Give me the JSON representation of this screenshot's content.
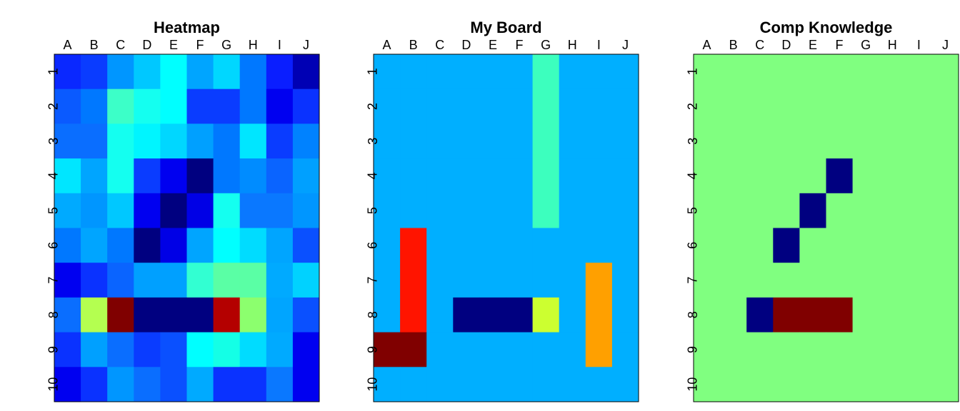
{
  "panels": [
    {
      "title": "Heatmap",
      "columns": [
        "A",
        "B",
        "C",
        "D",
        "E",
        "F",
        "G",
        "H",
        "I",
        "J"
      ],
      "rows": [
        "1",
        "2",
        "3",
        "4",
        "5",
        "6",
        "7",
        "8",
        "9",
        "10"
      ],
      "cells": [
        [
          "#0a28ff",
          "#0a3cff",
          "#0096ff",
          "#00c8ff",
          "#00ffff",
          "#00a5ff",
          "#00d7ff",
          "#0078ff",
          "#0a1eff",
          "#0000b4"
        ],
        [
          "#0a5aff",
          "#0078ff",
          "#3cffc8",
          "#14fff0",
          "#00ffff",
          "#0a3cff",
          "#0a3cff",
          "#0078ff",
          "#0000f0",
          "#0a32ff"
        ],
        [
          "#0a6eff",
          "#0a6eff",
          "#14fff0",
          "#00f5ff",
          "#00d7ff",
          "#00a0ff",
          "#0078ff",
          "#00e6ff",
          "#0a3cff",
          "#0082ff"
        ],
        [
          "#00e6ff",
          "#00a5ff",
          "#14fff0",
          "#0a3cff",
          "#0000f0",
          "#000080",
          "#0078ff",
          "#008cff",
          "#0a64ff",
          "#00a0ff"
        ],
        [
          "#00aaff",
          "#0096ff",
          "#00c8ff",
          "#0000f0",
          "#000080",
          "#0000e6",
          "#14fff0",
          "#0a78ff",
          "#0a78ff",
          "#0096ff"
        ],
        [
          "#0078ff",
          "#00a5ff",
          "#0078ff",
          "#000080",
          "#0000e6",
          "#00a5ff",
          "#00ffff",
          "#00dcff",
          "#00a5ff",
          "#0a50ff"
        ],
        [
          "#0000f0",
          "#0a32ff",
          "#0a64ff",
          "#00a0ff",
          "#00a0ff",
          "#32ffd2",
          "#5affa5",
          "#5affa5",
          "#00aaff",
          "#00d2ff"
        ],
        [
          "#0a6eff",
          "#b4ff50",
          "#800000",
          "#000080",
          "#000080",
          "#000080",
          "#b40000",
          "#8cff6e",
          "#00a5ff",
          "#0a50ff"
        ],
        [
          "#0a32ff",
          "#00a0ff",
          "#0a6eff",
          "#0a3cff",
          "#0a50ff",
          "#00ffff",
          "#14ffe6",
          "#00dcff",
          "#00aaff",
          "#0000f0"
        ],
        [
          "#0000f0",
          "#0a32ff",
          "#0096ff",
          "#0a6eff",
          "#0a50ff",
          "#00aaff",
          "#0a32ff",
          "#0a32ff",
          "#0a78ff",
          "#0000f0"
        ]
      ]
    },
    {
      "title": "My Board",
      "columns": [
        "A",
        "B",
        "C",
        "D",
        "E",
        "F",
        "G",
        "H",
        "I",
        "J"
      ],
      "rows": [
        "1",
        "2",
        "3",
        "4",
        "5",
        "6",
        "7",
        "8",
        "9",
        "10"
      ],
      "cells": [
        [
          "#00afff",
          "#00afff",
          "#00afff",
          "#00afff",
          "#00afff",
          "#00afff",
          "#3cffbe",
          "#00afff",
          "#00afff",
          "#00afff"
        ],
        [
          "#00afff",
          "#00afff",
          "#00afff",
          "#00afff",
          "#00afff",
          "#00afff",
          "#3cffbe",
          "#00afff",
          "#00afff",
          "#00afff"
        ],
        [
          "#00afff",
          "#00afff",
          "#00afff",
          "#00afff",
          "#00afff",
          "#00afff",
          "#3cffbe",
          "#00afff",
          "#00afff",
          "#00afff"
        ],
        [
          "#00afff",
          "#00afff",
          "#00afff",
          "#00afff",
          "#00afff",
          "#00afff",
          "#3cffbe",
          "#00afff",
          "#00afff",
          "#00afff"
        ],
        [
          "#00afff",
          "#00afff",
          "#00afff",
          "#00afff",
          "#00afff",
          "#00afff",
          "#3cffbe",
          "#00afff",
          "#00afff",
          "#00afff"
        ],
        [
          "#00afff",
          "#ff1400",
          "#00afff",
          "#00afff",
          "#00afff",
          "#00afff",
          "#00afff",
          "#00afff",
          "#00afff",
          "#00afff"
        ],
        [
          "#00afff",
          "#ff1400",
          "#00afff",
          "#00afff",
          "#00afff",
          "#00afff",
          "#00afff",
          "#00afff",
          "#ffa000",
          "#00afff"
        ],
        [
          "#00afff",
          "#ff1400",
          "#00afff",
          "#000080",
          "#000080",
          "#000080",
          "#ccff30",
          "#00afff",
          "#ffa000",
          "#00afff"
        ],
        [
          "#800000",
          "#800000",
          "#00afff",
          "#00afff",
          "#00afff",
          "#00afff",
          "#00afff",
          "#00afff",
          "#ffa000",
          "#00afff"
        ],
        [
          "#00afff",
          "#00afff",
          "#00afff",
          "#00afff",
          "#00afff",
          "#00afff",
          "#00afff",
          "#00afff",
          "#00afff",
          "#00afff"
        ]
      ]
    },
    {
      "title": "Comp Knowledge",
      "columns": [
        "A",
        "B",
        "C",
        "D",
        "E",
        "F",
        "G",
        "H",
        "I",
        "J"
      ],
      "rows": [
        "1",
        "2",
        "3",
        "4",
        "5",
        "6",
        "7",
        "8",
        "9",
        "10"
      ],
      "cells": [
        [
          "#80ff80",
          "#80ff80",
          "#80ff80",
          "#80ff80",
          "#80ff80",
          "#80ff80",
          "#80ff80",
          "#80ff80",
          "#80ff80",
          "#80ff80"
        ],
        [
          "#80ff80",
          "#80ff80",
          "#80ff80",
          "#80ff80",
          "#80ff80",
          "#80ff80",
          "#80ff80",
          "#80ff80",
          "#80ff80",
          "#80ff80"
        ],
        [
          "#80ff80",
          "#80ff80",
          "#80ff80",
          "#80ff80",
          "#80ff80",
          "#80ff80",
          "#80ff80",
          "#80ff80",
          "#80ff80",
          "#80ff80"
        ],
        [
          "#80ff80",
          "#80ff80",
          "#80ff80",
          "#80ff80",
          "#80ff80",
          "#000080",
          "#80ff80",
          "#80ff80",
          "#80ff80",
          "#80ff80"
        ],
        [
          "#80ff80",
          "#80ff80",
          "#80ff80",
          "#80ff80",
          "#000080",
          "#80ff80",
          "#80ff80",
          "#80ff80",
          "#80ff80",
          "#80ff80"
        ],
        [
          "#80ff80",
          "#80ff80",
          "#80ff80",
          "#000080",
          "#80ff80",
          "#80ff80",
          "#80ff80",
          "#80ff80",
          "#80ff80",
          "#80ff80"
        ],
        [
          "#80ff80",
          "#80ff80",
          "#80ff80",
          "#80ff80",
          "#80ff80",
          "#80ff80",
          "#80ff80",
          "#80ff80",
          "#80ff80",
          "#80ff80"
        ],
        [
          "#80ff80",
          "#80ff80",
          "#000080",
          "#800000",
          "#800000",
          "#800000",
          "#80ff80",
          "#80ff80",
          "#80ff80",
          "#80ff80"
        ],
        [
          "#80ff80",
          "#80ff80",
          "#80ff80",
          "#80ff80",
          "#80ff80",
          "#80ff80",
          "#80ff80",
          "#80ff80",
          "#80ff80",
          "#80ff80"
        ],
        [
          "#80ff80",
          "#80ff80",
          "#80ff80",
          "#80ff80",
          "#80ff80",
          "#80ff80",
          "#80ff80",
          "#80ff80",
          "#80ff80",
          "#80ff80"
        ]
      ]
    }
  ]
}
